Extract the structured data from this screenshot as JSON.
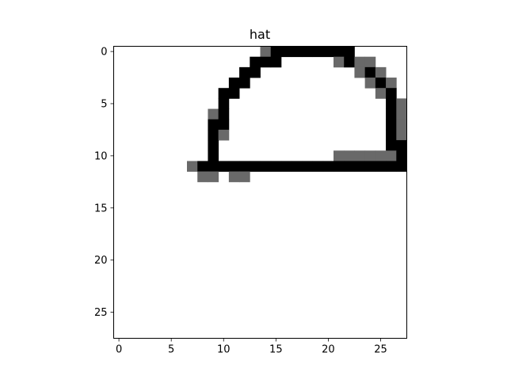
{
  "chart_data": {
    "type": "heatmap",
    "title": "hat",
    "colormap": "gray_r",
    "value_range": [
      0,
      255
    ],
    "rows": 28,
    "cols": 28,
    "xlim": [
      -0.5,
      27.5
    ],
    "ylim": [
      27.5,
      -0.5
    ],
    "xticks": [
      0,
      5,
      10,
      15,
      20,
      25
    ],
    "yticks": [
      0,
      5,
      10,
      15,
      20,
      25
    ],
    "pixels": [
      {
        "r": 0,
        "c": 14,
        "v": 150
      },
      {
        "r": 0,
        "c": 15,
        "v": 255
      },
      {
        "r": 0,
        "c": 16,
        "v": 255
      },
      {
        "r": 0,
        "c": 17,
        "v": 255
      },
      {
        "r": 0,
        "c": 18,
        "v": 255
      },
      {
        "r": 0,
        "c": 19,
        "v": 255
      },
      {
        "r": 0,
        "c": 20,
        "v": 255
      },
      {
        "r": 0,
        "c": 21,
        "v": 255
      },
      {
        "r": 0,
        "c": 22,
        "v": 255
      },
      {
        "r": 1,
        "c": 13,
        "v": 255
      },
      {
        "r": 1,
        "c": 14,
        "v": 255
      },
      {
        "r": 1,
        "c": 15,
        "v": 255
      },
      {
        "r": 1,
        "c": 21,
        "v": 150
      },
      {
        "r": 1,
        "c": 22,
        "v": 255
      },
      {
        "r": 1,
        "c": 23,
        "v": 150
      },
      {
        "r": 1,
        "c": 24,
        "v": 150
      },
      {
        "r": 2,
        "c": 12,
        "v": 255
      },
      {
        "r": 2,
        "c": 13,
        "v": 255
      },
      {
        "r": 2,
        "c": 23,
        "v": 150
      },
      {
        "r": 2,
        "c": 24,
        "v": 255
      },
      {
        "r": 2,
        "c": 25,
        "v": 150
      },
      {
        "r": 3,
        "c": 11,
        "v": 255
      },
      {
        "r": 3,
        "c": 12,
        "v": 255
      },
      {
        "r": 3,
        "c": 24,
        "v": 150
      },
      {
        "r": 3,
        "c": 25,
        "v": 255
      },
      {
        "r": 3,
        "c": 26,
        "v": 150
      },
      {
        "r": 4,
        "c": 10,
        "v": 255
      },
      {
        "r": 4,
        "c": 11,
        "v": 255
      },
      {
        "r": 4,
        "c": 25,
        "v": 150
      },
      {
        "r": 4,
        "c": 26,
        "v": 255
      },
      {
        "r": 5,
        "c": 10,
        "v": 255
      },
      {
        "r": 5,
        "c": 26,
        "v": 255
      },
      {
        "r": 5,
        "c": 27,
        "v": 150
      },
      {
        "r": 6,
        "c": 9,
        "v": 150
      },
      {
        "r": 6,
        "c": 10,
        "v": 255
      },
      {
        "r": 6,
        "c": 26,
        "v": 255
      },
      {
        "r": 6,
        "c": 27,
        "v": 150
      },
      {
        "r": 7,
        "c": 9,
        "v": 255
      },
      {
        "r": 7,
        "c": 10,
        "v": 255
      },
      {
        "r": 7,
        "c": 26,
        "v": 255
      },
      {
        "r": 7,
        "c": 27,
        "v": 150
      },
      {
        "r": 8,
        "c": 9,
        "v": 255
      },
      {
        "r": 8,
        "c": 10,
        "v": 150
      },
      {
        "r": 8,
        "c": 26,
        "v": 255
      },
      {
        "r": 8,
        "c": 27,
        "v": 150
      },
      {
        "r": 9,
        "c": 9,
        "v": 255
      },
      {
        "r": 9,
        "c": 26,
        "v": 255
      },
      {
        "r": 9,
        "c": 27,
        "v": 255
      },
      {
        "r": 10,
        "c": 9,
        "v": 255
      },
      {
        "r": 10,
        "c": 21,
        "v": 150
      },
      {
        "r": 10,
        "c": 22,
        "v": 150
      },
      {
        "r": 10,
        "c": 23,
        "v": 150
      },
      {
        "r": 10,
        "c": 24,
        "v": 150
      },
      {
        "r": 10,
        "c": 25,
        "v": 150
      },
      {
        "r": 10,
        "c": 26,
        "v": 150
      },
      {
        "r": 10,
        "c": 27,
        "v": 255
      },
      {
        "r": 11,
        "c": 7,
        "v": 150
      },
      {
        "r": 11,
        "c": 8,
        "v": 255
      },
      {
        "r": 11,
        "c": 9,
        "v": 255
      },
      {
        "r": 11,
        "c": 10,
        "v": 255
      },
      {
        "r": 11,
        "c": 11,
        "v": 255
      },
      {
        "r": 11,
        "c": 12,
        "v": 255
      },
      {
        "r": 11,
        "c": 13,
        "v": 255
      },
      {
        "r": 11,
        "c": 14,
        "v": 255
      },
      {
        "r": 11,
        "c": 15,
        "v": 255
      },
      {
        "r": 11,
        "c": 16,
        "v": 255
      },
      {
        "r": 11,
        "c": 17,
        "v": 255
      },
      {
        "r": 11,
        "c": 18,
        "v": 255
      },
      {
        "r": 11,
        "c": 19,
        "v": 255
      },
      {
        "r": 11,
        "c": 20,
        "v": 255
      },
      {
        "r": 11,
        "c": 21,
        "v": 255
      },
      {
        "r": 11,
        "c": 22,
        "v": 255
      },
      {
        "r": 11,
        "c": 23,
        "v": 255
      },
      {
        "r": 11,
        "c": 24,
        "v": 255
      },
      {
        "r": 11,
        "c": 25,
        "v": 255
      },
      {
        "r": 11,
        "c": 26,
        "v": 255
      },
      {
        "r": 11,
        "c": 27,
        "v": 255
      },
      {
        "r": 12,
        "c": 8,
        "v": 150
      },
      {
        "r": 12,
        "c": 9,
        "v": 150
      },
      {
        "r": 12,
        "c": 11,
        "v": 150
      },
      {
        "r": 12,
        "c": 12,
        "v": 150
      }
    ]
  }
}
